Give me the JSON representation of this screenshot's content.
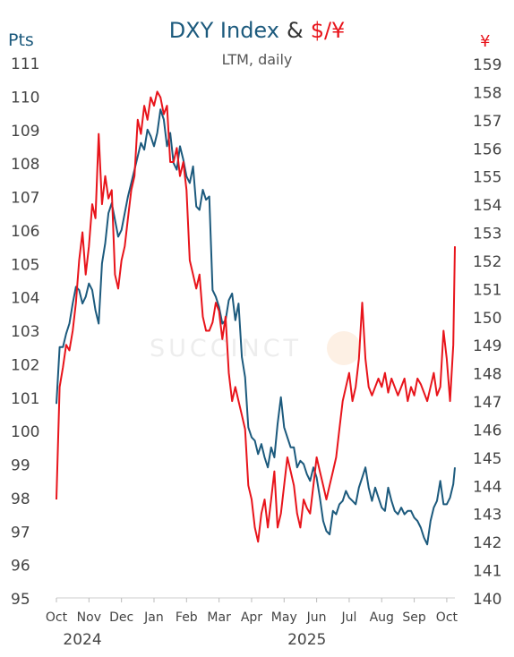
{
  "header": {
    "title_part1": "DXY Index",
    "title_amp": "&",
    "title_part2": "$/¥",
    "subtitle": "LTM, daily",
    "left_unit": "Pts",
    "right_unit": "¥"
  },
  "watermark": "SUCCINCT",
  "colors": {
    "dxy": "#1c5a7d",
    "usdjpy": "#e8141b",
    "axis_text": "#444444"
  },
  "chart_data": {
    "type": "line",
    "title": "DXY Index & $/¥",
    "subtitle": "LTM, daily",
    "x_axis": {
      "tick_labels": [
        "Oct",
        "Nov",
        "Dec",
        "Jan",
        "Feb",
        "Mar",
        "Apr",
        "May",
        "Jun",
        "Jul",
        "Aug",
        "Sep",
        "Oct"
      ],
      "year_labels": [
        {
          "label": "2024",
          "at_month": 0.8
        },
        {
          "label": "2025",
          "at_month": 7.7
        }
      ],
      "range_months": [
        0,
        12.25
      ]
    },
    "y_left": {
      "label": "Pts",
      "min": 95,
      "max": 111,
      "ticks": [
        95,
        96,
        97,
        98,
        99,
        100,
        101,
        102,
        103,
        104,
        105,
        106,
        107,
        108,
        109,
        110,
        111
      ]
    },
    "y_right": {
      "label": "¥",
      "min": 140,
      "max": 159,
      "ticks": [
        140,
        141,
        142,
        143,
        144,
        145,
        146,
        147,
        148,
        149,
        150,
        151,
        152,
        153,
        154,
        155,
        156,
        157,
        158,
        159
      ]
    },
    "grid": false,
    "series": [
      {
        "name": "DXY Index",
        "axis": "left",
        "x": [
          0.0,
          0.1,
          0.2,
          0.3,
          0.4,
          0.5,
          0.6,
          0.7,
          0.8,
          0.9,
          1.0,
          1.1,
          1.2,
          1.3,
          1.4,
          1.5,
          1.6,
          1.7,
          1.8,
          1.9,
          2.0,
          2.1,
          2.2,
          2.3,
          2.4,
          2.5,
          2.6,
          2.7,
          2.8,
          2.9,
          3.0,
          3.1,
          3.2,
          3.3,
          3.4,
          3.5,
          3.6,
          3.7,
          3.8,
          3.9,
          4.0,
          4.1,
          4.2,
          4.3,
          4.4,
          4.5,
          4.6,
          4.7,
          4.8,
          4.9,
          5.0,
          5.1,
          5.2,
          5.3,
          5.4,
          5.5,
          5.6,
          5.7,
          5.8,
          5.9,
          6.0,
          6.1,
          6.2,
          6.3,
          6.4,
          6.5,
          6.6,
          6.7,
          6.8,
          6.9,
          7.0,
          7.1,
          7.2,
          7.3,
          7.4,
          7.5,
          7.6,
          7.7,
          7.8,
          7.9,
          8.0,
          8.1,
          8.2,
          8.3,
          8.4,
          8.5,
          8.6,
          8.7,
          8.8,
          8.9,
          9.0,
          9.1,
          9.2,
          9.3,
          9.4,
          9.5,
          9.6,
          9.7,
          9.8,
          9.9,
          10.0,
          10.1,
          10.2,
          10.3,
          10.4,
          10.5,
          10.6,
          10.7,
          10.8,
          10.9,
          11.0,
          11.1,
          11.2,
          11.3,
          11.4,
          11.5,
          11.6,
          11.7,
          11.8,
          11.9,
          12.0,
          12.1,
          12.2,
          12.25
        ],
        "values": [
          100.8,
          102.5,
          102.5,
          102.9,
          103.2,
          103.8,
          104.3,
          104.2,
          103.8,
          104.0,
          104.4,
          104.2,
          103.6,
          103.2,
          105.0,
          105.6,
          106.5,
          106.8,
          106.3,
          105.8,
          106.0,
          106.5,
          107.0,
          107.4,
          107.8,
          108.2,
          108.6,
          108.4,
          109.0,
          108.8,
          108.5,
          108.9,
          109.6,
          109.3,
          108.5,
          108.9,
          108.0,
          107.8,
          108.5,
          108.1,
          107.6,
          107.4,
          107.9,
          106.7,
          106.6,
          107.2,
          106.9,
          107.0,
          104.2,
          104.0,
          103.7,
          103.2,
          103.3,
          103.9,
          104.1,
          103.3,
          103.8,
          102.2,
          101.6,
          100.1,
          99.8,
          99.7,
          99.3,
          99.6,
          99.2,
          98.9,
          99.5,
          99.2,
          100.2,
          101.0,
          100.1,
          99.8,
          99.5,
          99.5,
          98.9,
          99.1,
          99.0,
          98.7,
          98.5,
          98.9,
          98.6,
          98.0,
          97.3,
          97.0,
          96.9,
          97.6,
          97.5,
          97.8,
          97.9,
          98.2,
          98.0,
          97.9,
          97.8,
          98.3,
          98.6,
          98.9,
          98.3,
          97.9,
          98.3,
          98.0,
          97.7,
          97.6,
          98.3,
          97.9,
          97.6,
          97.5,
          97.7,
          97.5,
          97.6,
          97.6,
          97.4,
          97.3,
          97.1,
          96.8,
          96.6,
          97.3,
          97.7,
          97.9,
          98.5,
          97.8,
          97.8,
          98.0,
          98.4,
          98.9
        ]
      },
      {
        "name": "$/¥",
        "axis": "right",
        "x": [
          0.0,
          0.1,
          0.2,
          0.3,
          0.4,
          0.5,
          0.6,
          0.7,
          0.8,
          0.9,
          1.0,
          1.1,
          1.2,
          1.3,
          1.4,
          1.5,
          1.6,
          1.7,
          1.8,
          1.9,
          2.0,
          2.1,
          2.2,
          2.3,
          2.4,
          2.5,
          2.6,
          2.7,
          2.8,
          2.9,
          3.0,
          3.1,
          3.2,
          3.3,
          3.4,
          3.5,
          3.6,
          3.7,
          3.8,
          3.9,
          4.0,
          4.1,
          4.2,
          4.3,
          4.4,
          4.5,
          4.6,
          4.7,
          4.8,
          4.9,
          5.0,
          5.1,
          5.2,
          5.3,
          5.4,
          5.5,
          5.6,
          5.7,
          5.8,
          5.9,
          6.0,
          6.1,
          6.2,
          6.3,
          6.4,
          6.5,
          6.6,
          6.7,
          6.8,
          6.9,
          7.0,
          7.1,
          7.2,
          7.3,
          7.4,
          7.5,
          7.6,
          7.7,
          7.8,
          7.9,
          8.0,
          8.1,
          8.2,
          8.3,
          8.4,
          8.5,
          8.6,
          8.7,
          8.8,
          8.9,
          9.0,
          9.1,
          9.2,
          9.3,
          9.4,
          9.5,
          9.6,
          9.7,
          9.8,
          9.9,
          10.0,
          10.1,
          10.2,
          10.3,
          10.4,
          10.5,
          10.6,
          10.7,
          10.8,
          10.9,
          11.0,
          11.1,
          11.2,
          11.3,
          11.4,
          11.5,
          11.6,
          11.7,
          11.8,
          11.9,
          12.0,
          12.1,
          12.2,
          12.25
        ],
        "values": [
          143.5,
          147.5,
          148.2,
          149.0,
          148.8,
          149.5,
          150.5,
          152.0,
          153.0,
          151.5,
          152.5,
          154.0,
          153.5,
          156.5,
          154.0,
          155.0,
          154.2,
          154.5,
          151.5,
          151.0,
          152.0,
          152.5,
          153.5,
          154.5,
          155.0,
          157.0,
          156.5,
          157.5,
          157.0,
          157.8,
          157.5,
          158.0,
          157.8,
          157.2,
          157.5,
          155.5,
          155.5,
          156.0,
          155.0,
          155.5,
          154.5,
          152.0,
          151.5,
          151.0,
          151.5,
          150.0,
          149.5,
          149.5,
          149.8,
          150.5,
          150.2,
          149.2,
          150.0,
          148.0,
          147.0,
          147.5,
          147.0,
          146.5,
          146.0,
          144.0,
          143.5,
          142.5,
          142.0,
          143.0,
          143.5,
          142.5,
          143.5,
          144.5,
          142.5,
          143.0,
          144.0,
          145.0,
          144.5,
          144.0,
          143.0,
          142.5,
          143.5,
          143.2,
          143.0,
          144.0,
          145.0,
          144.5,
          144.0,
          143.5,
          144.0,
          144.5,
          145.0,
          146.0,
          147.0,
          147.5,
          148.0,
          147.0,
          147.5,
          148.5,
          150.5,
          148.5,
          147.5,
          147.2,
          147.5,
          147.8,
          147.5,
          148.0,
          147.3,
          147.8,
          147.5,
          147.2,
          147.5,
          147.8,
          147.0,
          147.5,
          147.2,
          147.8,
          147.6,
          147.3,
          147.0,
          147.5,
          148.0,
          147.2,
          147.5,
          149.5,
          148.5,
          147.0,
          149.0,
          152.5
        ]
      }
    ]
  }
}
